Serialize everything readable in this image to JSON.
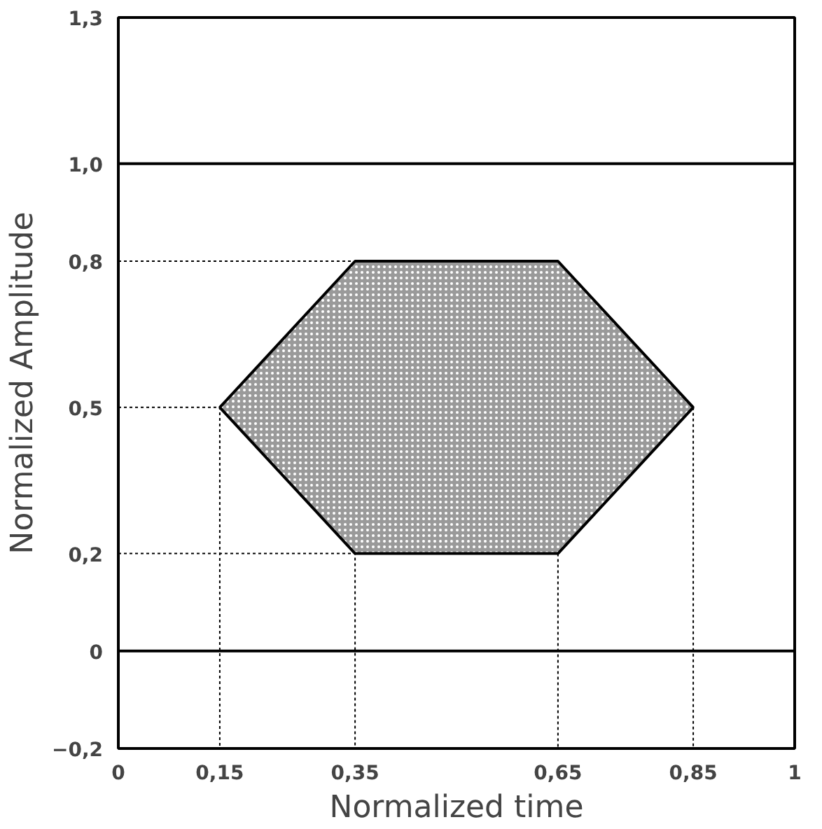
{
  "chart_data": {
    "type": "area",
    "xlabel": "Normalized time",
    "ylabel": "Normalized Amplitude",
    "xlim": [
      0,
      1
    ],
    "ylim": [
      -0.2,
      1.3
    ],
    "xticks": [
      0,
      {
        "value": 0.15,
        "label": "0,15"
      },
      {
        "value": 0.35,
        "label": "0,35"
      },
      {
        "value": 0.65,
        "label": "0,65"
      },
      {
        "value": 0.85,
        "label": "0,85"
      },
      1
    ],
    "yticks": [
      {
        "value": -0.2,
        "label": "−0,2"
      },
      0,
      {
        "value": 0.2,
        "label": "0,2"
      },
      {
        "value": 0.5,
        "label": "0,5"
      },
      {
        "value": 0.8,
        "label": "0,8"
      },
      {
        "value": 1.0,
        "label": "1,0"
      },
      {
        "value": 1.3,
        "label": "1,3"
      }
    ],
    "series": [
      {
        "color": "#9a9a9a",
        "x": [
          0.15,
          0.35,
          0.65,
          0.85,
          0.65,
          0.35
        ],
        "values": [
          0.5,
          0.8,
          0.8,
          0.5,
          0.2,
          0.2
        ]
      },
      {
        "type": "line",
        "line_style": "dotted",
        "color": "#000000",
        "x": [
          0,
          0.15,
          0.15
        ],
        "values": [
          0.5,
          0.5,
          -0.2
        ]
      },
      {
        "type": "line",
        "line_style": "dotted",
        "color": "#000000",
        "x": [
          0,
          0.35
        ],
        "values": [
          0.8,
          0.8
        ]
      },
      {
        "type": "line",
        "line_style": "dotted",
        "color": "#000000",
        "x": [
          0,
          0.35,
          0.35
        ],
        "values": [
          0.2,
          0.2,
          -0.2
        ]
      },
      {
        "type": "line",
        "line_style": "dotted",
        "color": "#000000",
        "x": [
          0.65,
          0.65
        ],
        "values": [
          0.2,
          -0.2
        ]
      },
      {
        "type": "line",
        "line_style": "dotted",
        "color": "#000000",
        "x": [
          0.85,
          0.85
        ],
        "values": [
          0.5,
          -0.2
        ]
      }
    ],
    "ref_lines": [
      {
        "axis": "y",
        "value": 1.0,
        "color": "#000000",
        "line_style": "solid"
      },
      {
        "axis": "y",
        "value": 0,
        "color": "#000000",
        "line_style": "solid"
      }
    ]
  }
}
